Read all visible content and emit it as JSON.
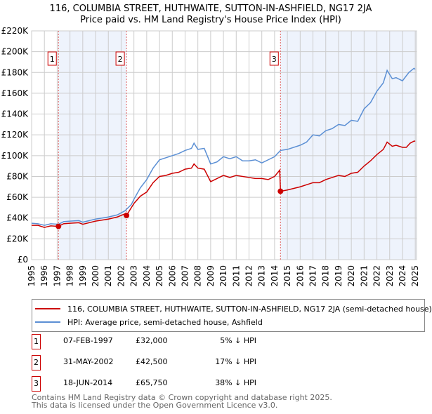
{
  "chart_data": {
    "type": "line",
    "title": "116, COLUMBIA STREET, HUTHWAITE, SUTTON-IN-ASHFIELD, NG17 2JA",
    "subtitle": "Price paid vs. HM Land Registry's House Price Index (HPI)",
    "xlim": [
      1995,
      2025.1
    ],
    "ylim": [
      0,
      220000
    ],
    "yticks": [
      0,
      20000,
      40000,
      60000,
      80000,
      100000,
      120000,
      140000,
      160000,
      180000,
      200000,
      220000
    ],
    "ytick_labels": [
      "£0",
      "£20K",
      "£40K",
      "£60K",
      "£80K",
      "£100K",
      "£120K",
      "£140K",
      "£160K",
      "£180K",
      "£200K",
      "£220K"
    ],
    "xticks": [
      "1995",
      "1996",
      "1997",
      "1998",
      "1999",
      "2000",
      "2001",
      "2002",
      "2003",
      "2004",
      "2005",
      "2006",
      "2007",
      "2008",
      "2009",
      "2010",
      "2011",
      "2012",
      "2013",
      "2014",
      "2015",
      "2016",
      "2017",
      "2018",
      "2019",
      "2020",
      "2021",
      "2022",
      "2023",
      "2024",
      "2025"
    ],
    "grid": true,
    "colors": {
      "property": "#cc0000",
      "hpi": "#5b8fd4",
      "shade": "#eef3fc"
    },
    "series": [
      {
        "name": "116, COLUMBIA STREET, HUTHWAITE, SUTTON-IN-ASHFIELD, NG17 2JA (semi-detached house)",
        "x": [
          1995,
          1995.5,
          1996,
          1996.5,
          1997.1,
          1997.5,
          1998,
          1998.7,
          1999,
          2000,
          2001,
          2001.7,
          2002.3,
          2002.42,
          2002.8,
          2003,
          2003.5,
          2004,
          2004.5,
          2005,
          2005.5,
          2006,
          2006.5,
          2007,
          2007.5,
          2007.7,
          2008,
          2008.5,
          2009,
          2009.5,
          2010,
          2010.5,
          2011,
          2012,
          2012.5,
          2013,
          2013.5,
          2014,
          2014.4,
          2014.46,
          2015,
          2016,
          2017,
          2017.5,
          2018,
          2019,
          2019.5,
          2020,
          2020.5,
          2021,
          2021.5,
          2022,
          2022.5,
          2022.8,
          2023.2,
          2023.5,
          2024,
          2024.3,
          2024.6,
          2024.9,
          2025
        ],
        "y": [
          33000,
          33000,
          31000,
          32500,
          32000,
          34500,
          35000,
          35500,
          34000,
          37000,
          39000,
          41000,
          44000,
          42500,
          50000,
          54000,
          61000,
          65000,
          74000,
          80000,
          81000,
          83000,
          84000,
          87000,
          88000,
          92000,
          88000,
          87000,
          75000,
          78000,
          81000,
          79000,
          81000,
          79000,
          78000,
          78000,
          77000,
          80000,
          86000,
          65750,
          67000,
          70000,
          74000,
          74000,
          77000,
          81000,
          80000,
          83000,
          84000,
          90000,
          95000,
          101000,
          106000,
          113000,
          109000,
          110000,
          108000,
          108000,
          112000,
          114000,
          114000
        ]
      },
      {
        "name": "HPI: Average price, semi-detached house, Ashfield",
        "x": [
          1995,
          1995.5,
          1996,
          1996.5,
          1997.1,
          1997.5,
          1998,
          1998.7,
          1999,
          2000,
          2001,
          2001.7,
          2002.3,
          2002.8,
          2003,
          2003.5,
          2004,
          2004.5,
          2005,
          2005.5,
          2006,
          2006.5,
          2007,
          2007.5,
          2007.7,
          2008,
          2008.5,
          2009,
          2009.5,
          2010,
          2010.5,
          2011,
          2011.5,
          2012,
          2012.5,
          2013,
          2013.5,
          2014,
          2014.46,
          2015,
          2016,
          2016.5,
          2017,
          2017.5,
          2018,
          2018.5,
          2019,
          2019.5,
          2020,
          2020.5,
          2021,
          2021.5,
          2022,
          2022.5,
          2022.8,
          2023.2,
          2023.5,
          2024,
          2024.5,
          2024.9,
          2025
        ],
        "y": [
          35000,
          34500,
          33000,
          34500,
          34000,
          36500,
          37000,
          37500,
          36000,
          39000,
          41000,
          43000,
          47000,
          53000,
          58000,
          69000,
          77000,
          88000,
          96000,
          98000,
          100000,
          102000,
          105000,
          107000,
          112000,
          106000,
          107000,
          92000,
          94000,
          99000,
          97000,
          99000,
          95000,
          95000,
          96000,
          93000,
          96000,
          99000,
          105000,
          106000,
          110000,
          113000,
          120000,
          119000,
          124000,
          126000,
          130000,
          129000,
          134000,
          133000,
          145000,
          151000,
          162000,
          170000,
          182000,
          174000,
          175000,
          172000,
          180000,
          184000,
          183000
        ]
      }
    ],
    "sales": [
      {
        "id": "1",
        "x": 1997.1,
        "date": "07-FEB-1997",
        "price": 32000,
        "price_label": "£32,000",
        "hpi_label": "5% ↓ HPI"
      },
      {
        "id": "2",
        "x": 2002.42,
        "date": "31-MAY-2002",
        "price": 42500,
        "price_label": "£42,500",
        "hpi_label": "17% ↓ HPI"
      },
      {
        "id": "3",
        "x": 2014.46,
        "date": "18-JUN-2014",
        "price": 65750,
        "price_label": "£65,750",
        "hpi_label": "38% ↓ HPI"
      }
    ],
    "shaded_ranges": [
      [
        1997.1,
        2002.42
      ],
      [
        2014.46,
        2025.1
      ]
    ]
  },
  "legend": {
    "property": "116, COLUMBIA STREET, HUTHWAITE, SUTTON-IN-ASHFIELD, NG17 2JA (semi-detached house)",
    "hpi": "HPI: Average price, semi-detached house, Ashfield"
  },
  "footer": {
    "line1": "Contains HM Land Registry data © Crown copyright and database right 2025.",
    "line2": "This data is licensed under the Open Government Licence v3.0."
  }
}
